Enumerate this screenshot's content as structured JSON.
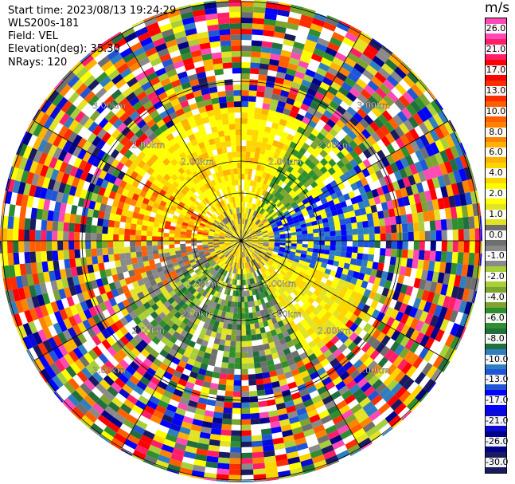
{
  "header": {
    "start_time": "Start time: 2023/08/13 19:24:29",
    "instrument": "WLS200s-181",
    "field": "Field: VEL",
    "elevation": "Elevation(deg): 35.30",
    "nrays": "NRays: 120"
  },
  "colorbar": {
    "title": "m/s",
    "ticks": [
      "26.0",
      "21.0",
      "17.0",
      "13.0",
      "10.0",
      "8.0",
      "6.0",
      "4.0",
      "2.0",
      "1.0",
      "0.0",
      "-1.0",
      "-2.0",
      "-4.0",
      "-6.0",
      "-8.0",
      "-10.0",
      "-13.0",
      "-17.0",
      "-21.0",
      "-26.0",
      "-30.0"
    ],
    "colors": [
      "#ff49b6",
      "#ff1f68",
      "#ff0000",
      "#fa2e00",
      "#ff5f00",
      "#ff8300",
      "#ffb200",
      "#ffd500",
      "#ffff00",
      "#e3e325",
      "#6f6f6f",
      "#8a8a8a",
      "#a8cf3a",
      "#7ca42e",
      "#2f8f2f",
      "#216f3d",
      "#2f7fc0",
      "#1f56d8",
      "#0000ff",
      "#0a0ad0",
      "#000088",
      "#1a1a60"
    ]
  },
  "chart_data": {
    "type": "heatmap",
    "subtype": "radar-ppi",
    "field": "VEL",
    "units": "m/s",
    "n_rays": 120,
    "range_rings_km": [
      1.0,
      2.0,
      3.0
    ],
    "ring_labels": [
      "1.00km",
      "2.00km",
      "3.00km"
    ],
    "value_range": [
      -30.0,
      26.0
    ],
    "grid": true
  }
}
